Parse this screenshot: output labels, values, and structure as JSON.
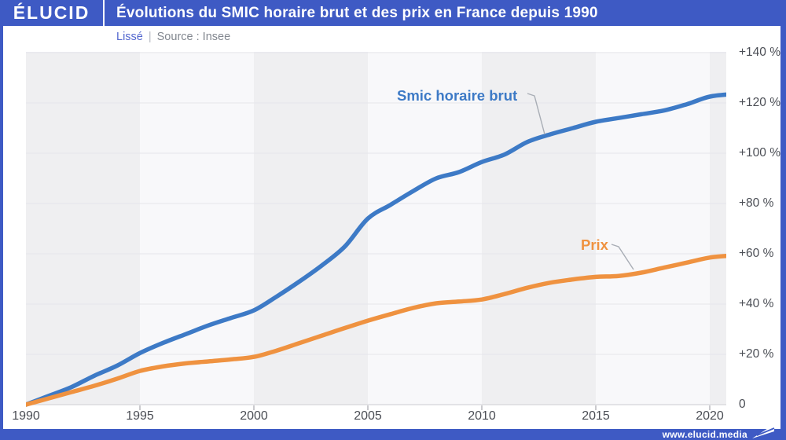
{
  "header": {
    "logo_text": "ÉLUCID",
    "title": "Évolutions du SMIC horaire brut et des prix en France depuis 1990"
  },
  "subheader": {
    "smoothing": "Lissé",
    "separator": "|",
    "source": "Source : Insee"
  },
  "footer": {
    "url": "www.elucid.media",
    "flag_icon": "elucid-flag-icon"
  },
  "colors": {
    "brand_blue": "#3e5ac4",
    "smic_blue": "#3d7ac6",
    "prix_orange": "#ef9240",
    "band_dark": "#efeff1",
    "band_light": "#f8f8fa",
    "gridline": "#e6e6ea",
    "axis_line": "#d5d5da",
    "tick_mark": "#b8b8bd",
    "tick_text": "#4b4e55",
    "lisse_text": "#5468cf",
    "source_text": "#82878f",
    "leader_line": "#a8adb5"
  },
  "chart_data": {
    "type": "line",
    "title": "Évolutions du SMIC horaire brut et des prix en France depuis 1990",
    "subtitle": "Lissé — Source : Insee",
    "unit": "%",
    "grid": true,
    "legend_position": "on-chart annotations",
    "xlim": [
      1990,
      2020.73
    ],
    "ylim": [
      0,
      145
    ],
    "x": [
      1990,
      1991,
      1992,
      1993,
      1994,
      1995,
      1996,
      1997,
      1998,
      1999,
      2000,
      2001,
      2002,
      2003,
      2004,
      2005,
      2006,
      2007,
      2008,
      2009,
      2010,
      2011,
      2012,
      2013,
      2014,
      2015,
      2016,
      2017,
      2018,
      2019,
      2020,
      2021
    ],
    "series": [
      {
        "name": "Smic horaire brut",
        "color": "#3d7ac6",
        "values": [
          0,
          3.5,
          7,
          11.5,
          15.5,
          20.5,
          24.5,
          28,
          31.5,
          34.5,
          37.5,
          43,
          49,
          55.5,
          63,
          74,
          79.5,
          85,
          90,
          92.5,
          96.5,
          99.5,
          104.5,
          107.5,
          110,
          112.5,
          114,
          115.5,
          117,
          119.5,
          122.5,
          123.5
        ]
      },
      {
        "name": "Prix",
        "color": "#ef9240",
        "values": [
          0,
          2.5,
          5,
          7.5,
          10.3,
          13.4,
          15.2,
          16.4,
          17.2,
          18,
          19,
          21.5,
          24.5,
          27.5,
          30.5,
          33.4,
          36,
          38.5,
          40.3,
          41,
          41.8,
          44,
          46.5,
          48.5,
          49.8,
          50.8,
          51.2,
          52.5,
          54.5,
          56.5,
          58.5,
          59.3
        ]
      }
    ],
    "xticks": [
      1990,
      1995,
      2000,
      2005,
      2010,
      2015,
      2020
    ],
    "yticks": [
      {
        "value": 0,
        "label": "0"
      },
      {
        "value": 20,
        "label": "+20 %"
      },
      {
        "value": 40,
        "label": "+40 %"
      },
      {
        "value": 60,
        "label": "+60 %"
      },
      {
        "value": 80,
        "label": "+80 %"
      },
      {
        "value": 100,
        "label": "+100 %"
      },
      {
        "value": 120,
        "label": "+120 %"
      },
      {
        "value": 140,
        "label": "+140 %"
      }
    ]
  }
}
